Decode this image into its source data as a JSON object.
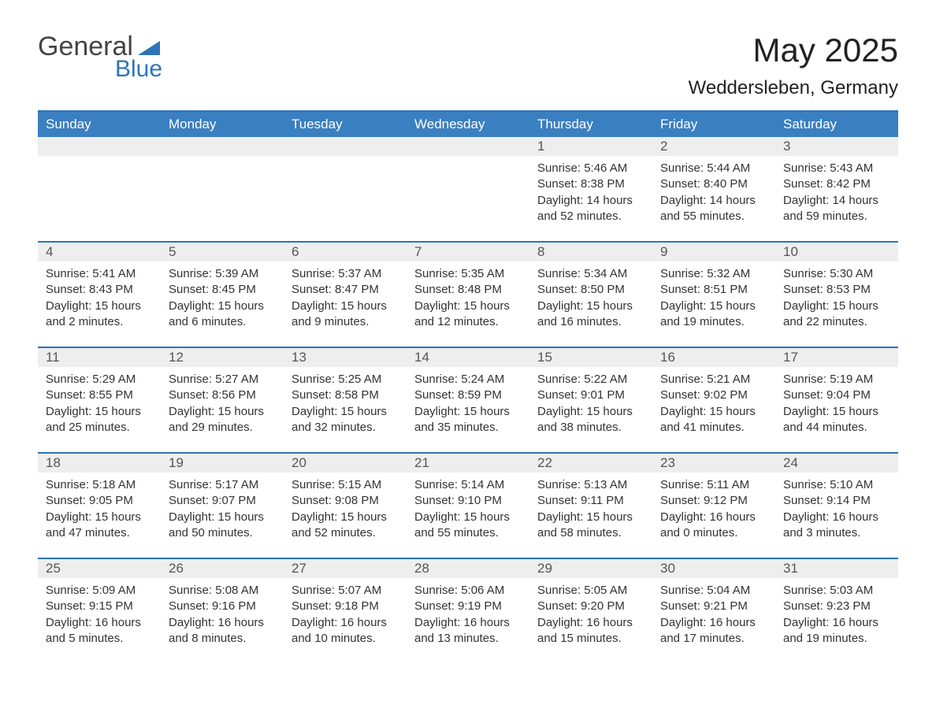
{
  "logo": {
    "text1": "General",
    "text2": "Blue",
    "tri_color": "#2d74b8"
  },
  "title": "May 2025",
  "location": "Weddersleben, Germany",
  "colors": {
    "header_bg": "#3a7fc0",
    "header_text": "#ffffff",
    "border": "#2d74b8",
    "daynum_bg": "#eeeeee",
    "text": "#333333",
    "background": "#ffffff"
  },
  "fonts": {
    "title_size_pt": 32,
    "location_size_pt": 18,
    "header_size_pt": 13,
    "body_size_pt": 11
  },
  "day_names": [
    "Sunday",
    "Monday",
    "Tuesday",
    "Wednesday",
    "Thursday",
    "Friday",
    "Saturday"
  ],
  "weeks": [
    {
      "nums": [
        "",
        "",
        "",
        "",
        "1",
        "2",
        "3"
      ],
      "cells": [
        {
          "sunrise": "",
          "sunset": "",
          "daylight": ""
        },
        {
          "sunrise": "",
          "sunset": "",
          "daylight": ""
        },
        {
          "sunrise": "",
          "sunset": "",
          "daylight": ""
        },
        {
          "sunrise": "",
          "sunset": "",
          "daylight": ""
        },
        {
          "sunrise": "Sunrise: 5:46 AM",
          "sunset": "Sunset: 8:38 PM",
          "daylight": "Daylight: 14 hours and 52 minutes."
        },
        {
          "sunrise": "Sunrise: 5:44 AM",
          "sunset": "Sunset: 8:40 PM",
          "daylight": "Daylight: 14 hours and 55 minutes."
        },
        {
          "sunrise": "Sunrise: 5:43 AM",
          "sunset": "Sunset: 8:42 PM",
          "daylight": "Daylight: 14 hours and 59 minutes."
        }
      ]
    },
    {
      "nums": [
        "4",
        "5",
        "6",
        "7",
        "8",
        "9",
        "10"
      ],
      "cells": [
        {
          "sunrise": "Sunrise: 5:41 AM",
          "sunset": "Sunset: 8:43 PM",
          "daylight": "Daylight: 15 hours and 2 minutes."
        },
        {
          "sunrise": "Sunrise: 5:39 AM",
          "sunset": "Sunset: 8:45 PM",
          "daylight": "Daylight: 15 hours and 6 minutes."
        },
        {
          "sunrise": "Sunrise: 5:37 AM",
          "sunset": "Sunset: 8:47 PM",
          "daylight": "Daylight: 15 hours and 9 minutes."
        },
        {
          "sunrise": "Sunrise: 5:35 AM",
          "sunset": "Sunset: 8:48 PM",
          "daylight": "Daylight: 15 hours and 12 minutes."
        },
        {
          "sunrise": "Sunrise: 5:34 AM",
          "sunset": "Sunset: 8:50 PM",
          "daylight": "Daylight: 15 hours and 16 minutes."
        },
        {
          "sunrise": "Sunrise: 5:32 AM",
          "sunset": "Sunset: 8:51 PM",
          "daylight": "Daylight: 15 hours and 19 minutes."
        },
        {
          "sunrise": "Sunrise: 5:30 AM",
          "sunset": "Sunset: 8:53 PM",
          "daylight": "Daylight: 15 hours and 22 minutes."
        }
      ]
    },
    {
      "nums": [
        "11",
        "12",
        "13",
        "14",
        "15",
        "16",
        "17"
      ],
      "cells": [
        {
          "sunrise": "Sunrise: 5:29 AM",
          "sunset": "Sunset: 8:55 PM",
          "daylight": "Daylight: 15 hours and 25 minutes."
        },
        {
          "sunrise": "Sunrise: 5:27 AM",
          "sunset": "Sunset: 8:56 PM",
          "daylight": "Daylight: 15 hours and 29 minutes."
        },
        {
          "sunrise": "Sunrise: 5:25 AM",
          "sunset": "Sunset: 8:58 PM",
          "daylight": "Daylight: 15 hours and 32 minutes."
        },
        {
          "sunrise": "Sunrise: 5:24 AM",
          "sunset": "Sunset: 8:59 PM",
          "daylight": "Daylight: 15 hours and 35 minutes."
        },
        {
          "sunrise": "Sunrise: 5:22 AM",
          "sunset": "Sunset: 9:01 PM",
          "daylight": "Daylight: 15 hours and 38 minutes."
        },
        {
          "sunrise": "Sunrise: 5:21 AM",
          "sunset": "Sunset: 9:02 PM",
          "daylight": "Daylight: 15 hours and 41 minutes."
        },
        {
          "sunrise": "Sunrise: 5:19 AM",
          "sunset": "Sunset: 9:04 PM",
          "daylight": "Daylight: 15 hours and 44 minutes."
        }
      ]
    },
    {
      "nums": [
        "18",
        "19",
        "20",
        "21",
        "22",
        "23",
        "24"
      ],
      "cells": [
        {
          "sunrise": "Sunrise: 5:18 AM",
          "sunset": "Sunset: 9:05 PM",
          "daylight": "Daylight: 15 hours and 47 minutes."
        },
        {
          "sunrise": "Sunrise: 5:17 AM",
          "sunset": "Sunset: 9:07 PM",
          "daylight": "Daylight: 15 hours and 50 minutes."
        },
        {
          "sunrise": "Sunrise: 5:15 AM",
          "sunset": "Sunset: 9:08 PM",
          "daylight": "Daylight: 15 hours and 52 minutes."
        },
        {
          "sunrise": "Sunrise: 5:14 AM",
          "sunset": "Sunset: 9:10 PM",
          "daylight": "Daylight: 15 hours and 55 minutes."
        },
        {
          "sunrise": "Sunrise: 5:13 AM",
          "sunset": "Sunset: 9:11 PM",
          "daylight": "Daylight: 15 hours and 58 minutes."
        },
        {
          "sunrise": "Sunrise: 5:11 AM",
          "sunset": "Sunset: 9:12 PM",
          "daylight": "Daylight: 16 hours and 0 minutes."
        },
        {
          "sunrise": "Sunrise: 5:10 AM",
          "sunset": "Sunset: 9:14 PM",
          "daylight": "Daylight: 16 hours and 3 minutes."
        }
      ]
    },
    {
      "nums": [
        "25",
        "26",
        "27",
        "28",
        "29",
        "30",
        "31"
      ],
      "cells": [
        {
          "sunrise": "Sunrise: 5:09 AM",
          "sunset": "Sunset: 9:15 PM",
          "daylight": "Daylight: 16 hours and 5 minutes."
        },
        {
          "sunrise": "Sunrise: 5:08 AM",
          "sunset": "Sunset: 9:16 PM",
          "daylight": "Daylight: 16 hours and 8 minutes."
        },
        {
          "sunrise": "Sunrise: 5:07 AM",
          "sunset": "Sunset: 9:18 PM",
          "daylight": "Daylight: 16 hours and 10 minutes."
        },
        {
          "sunrise": "Sunrise: 5:06 AM",
          "sunset": "Sunset: 9:19 PM",
          "daylight": "Daylight: 16 hours and 13 minutes."
        },
        {
          "sunrise": "Sunrise: 5:05 AM",
          "sunset": "Sunset: 9:20 PM",
          "daylight": "Daylight: 16 hours and 15 minutes."
        },
        {
          "sunrise": "Sunrise: 5:04 AM",
          "sunset": "Sunset: 9:21 PM",
          "daylight": "Daylight: 16 hours and 17 minutes."
        },
        {
          "sunrise": "Sunrise: 5:03 AM",
          "sunset": "Sunset: 9:23 PM",
          "daylight": "Daylight: 16 hours and 19 minutes."
        }
      ]
    }
  ]
}
